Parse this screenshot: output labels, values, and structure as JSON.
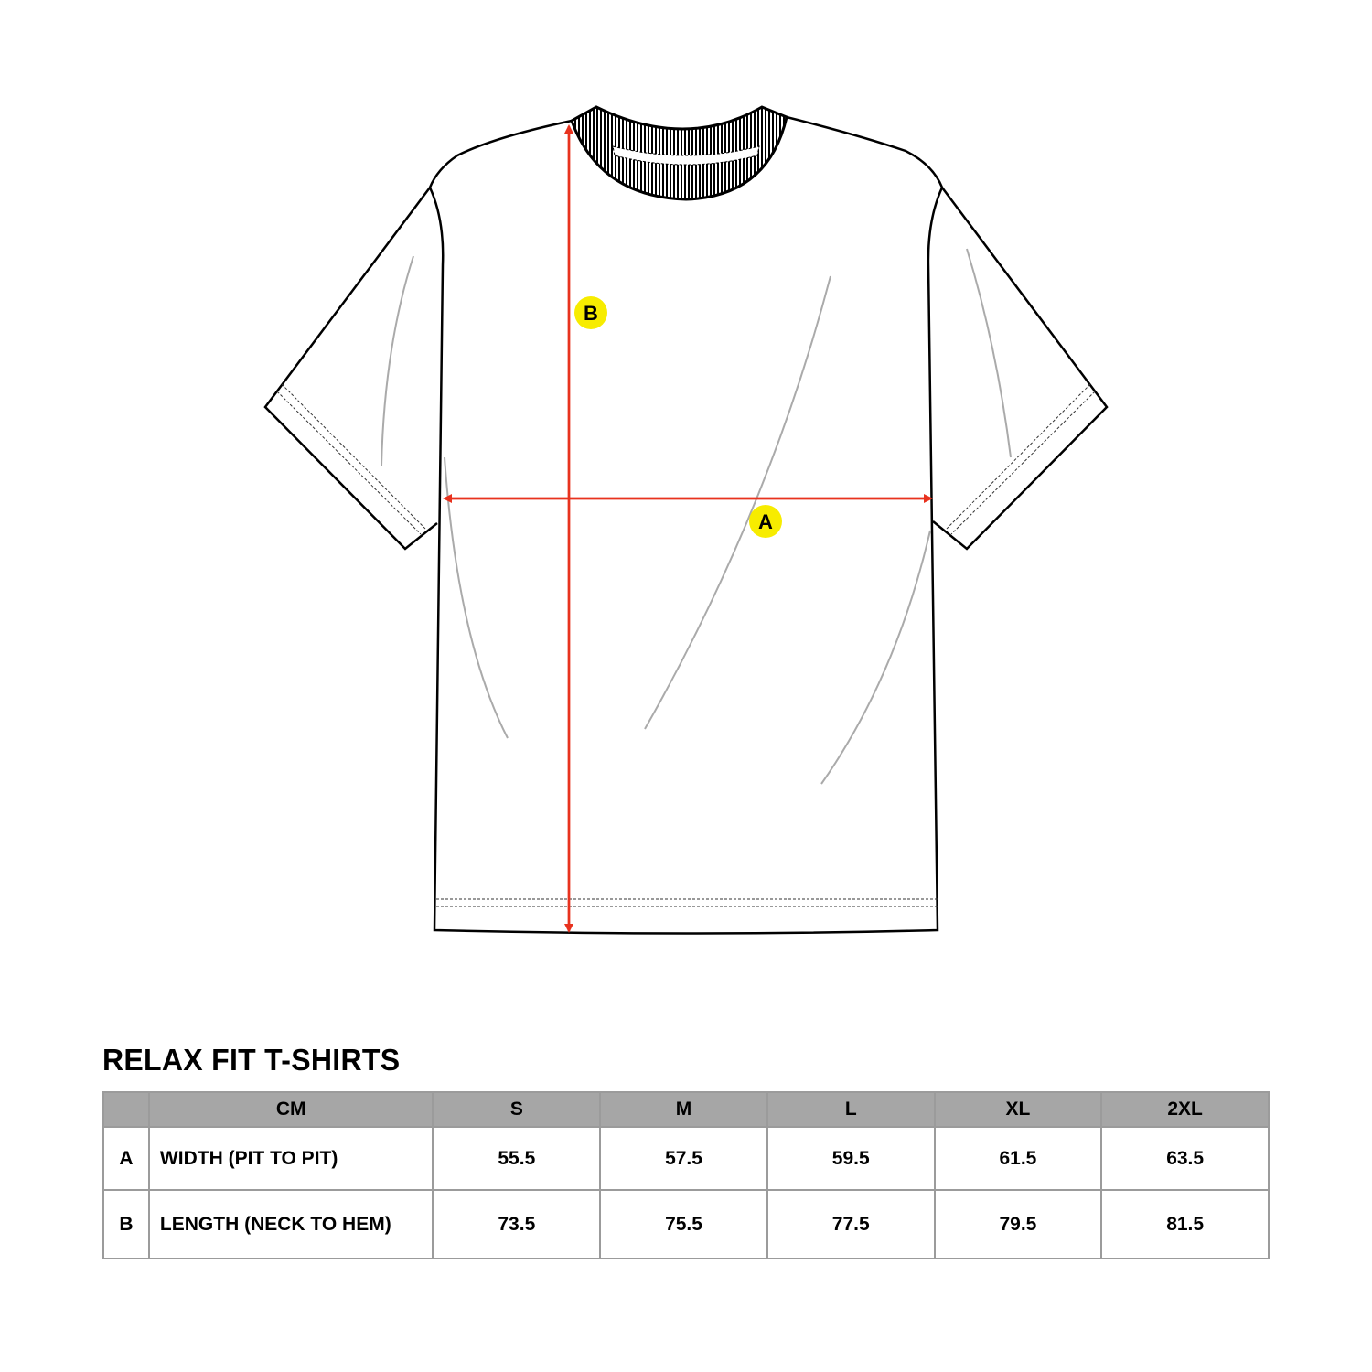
{
  "diagram": {
    "markers": {
      "width": "A",
      "length": "B"
    },
    "colors": {
      "arrow": "#e8321e",
      "marker": "#f7ec00",
      "outline": "#000000",
      "header_bg": "#a6a6a6"
    }
  },
  "table": {
    "title": "RELAX FIT T-SHIRTS",
    "unit": "CM",
    "sizes": [
      "S",
      "M",
      "L",
      "XL",
      "2XL"
    ],
    "rows": [
      {
        "key": "A",
        "label": "WIDTH (PIT TO PIT)",
        "values": [
          "55.5",
          "57.5",
          "59.5",
          "61.5",
          "63.5"
        ]
      },
      {
        "key": "B",
        "label": "LENGTH (NECK TO HEM)",
        "values": [
          "73.5",
          "75.5",
          "77.5",
          "79.5",
          "81.5"
        ]
      }
    ]
  }
}
